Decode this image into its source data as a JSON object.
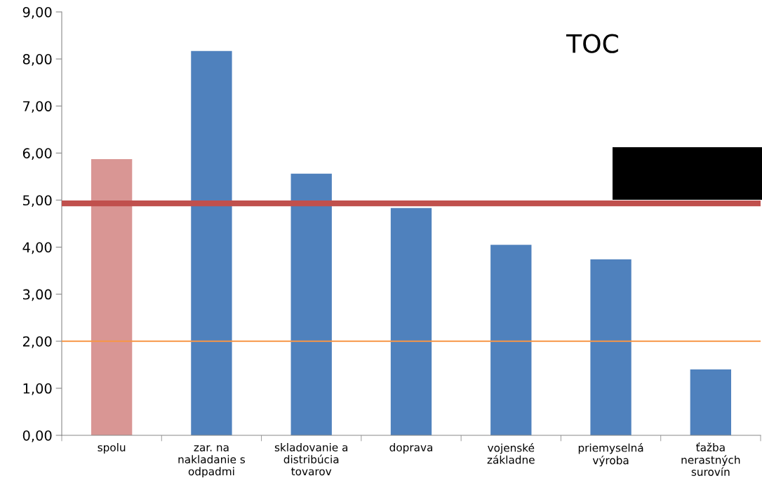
{
  "chart_data": {
    "type": "bar",
    "title": "TOC",
    "categories": [
      "spolu",
      "zar. na\nnakladanie s\nodpadmi",
      "skladovanie a\ndistribúcia\ntovarov",
      "doprava",
      "vojenské\nzákladne",
      "priemyselná\nvýroba",
      "ťažba\nnerastných\nsurovín"
    ],
    "values": [
      5.87,
      8.17,
      5.56,
      4.83,
      4.05,
      3.74,
      1.4
    ],
    "colors": [
      "#d99694",
      "#4f81bd",
      "#4f81bd",
      "#4f81bd",
      "#4f81bd",
      "#4f81bd",
      "#4f81bd"
    ],
    "ylim": [
      0,
      9
    ],
    "yticks": [
      {
        "value": 0,
        "label": "0,00"
      },
      {
        "value": 1,
        "label": "1,00"
      },
      {
        "value": 2,
        "label": "2,00"
      },
      {
        "value": 3,
        "label": "3,00"
      },
      {
        "value": 4,
        "label": "4,00"
      },
      {
        "value": 5,
        "label": "5,00"
      },
      {
        "value": 6,
        "label": "6,00"
      },
      {
        "value": 7,
        "label": "7,00"
      },
      {
        "value": 8,
        "label": "8,00"
      },
      {
        "value": 9,
        "label": "9,00"
      }
    ],
    "ref_lines": [
      {
        "axis": "y",
        "value": 4.93,
        "color": "#c0504d"
      },
      {
        "axis": "y",
        "value": 2.0,
        "color": "#f79646"
      }
    ],
    "grid": false,
    "legend": false
  }
}
